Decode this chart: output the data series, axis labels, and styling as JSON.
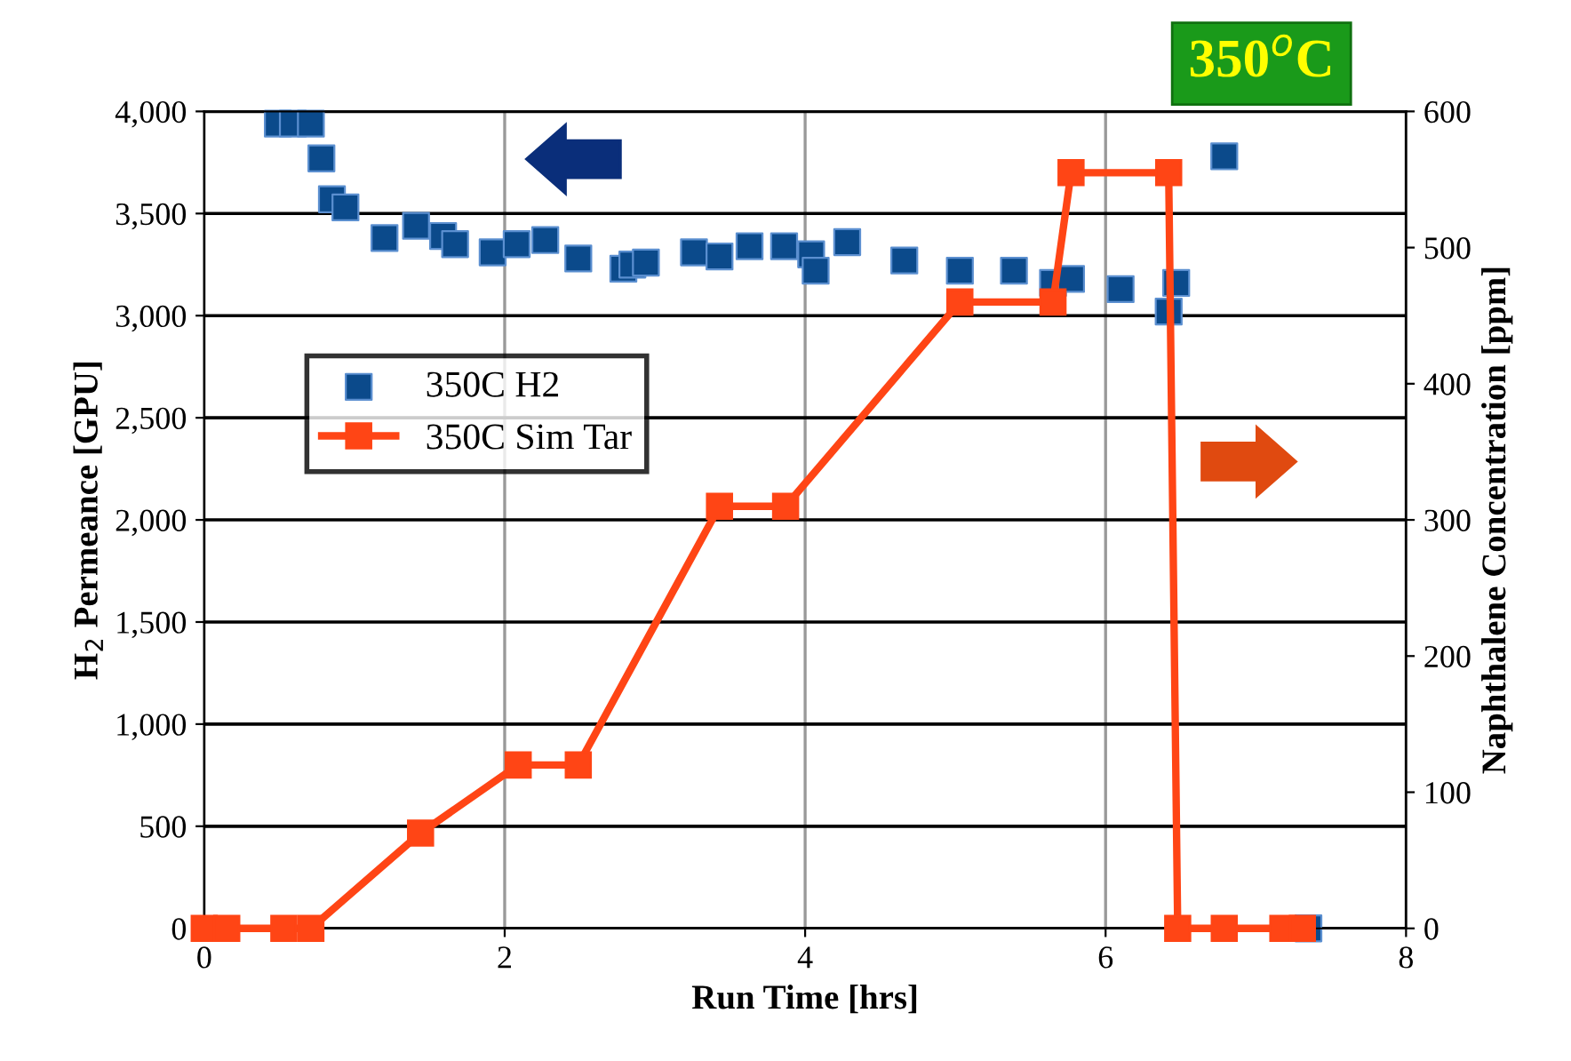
{
  "chart_data": {
    "type": "scatter",
    "xlabel": "Run Time [hrs]",
    "ylabel": "H$_{2}$ Permeance [GPU]",
    "y2label": "Naphthalene Concentration [ppm]",
    "annotations": [
      "350$^{o}$C"
    ],
    "xlim": [
      0,
      8
    ],
    "xticks": [
      0,
      2,
      4,
      6,
      8
    ],
    "ylim": [
      0,
      4000
    ],
    "yticks": [
      {
        "value": 0,
        "label": "0"
      },
      {
        "value": 500,
        "label": "500"
      },
      {
        "value": 1000,
        "label": "1,000"
      },
      {
        "value": 1500,
        "label": "1,500"
      },
      {
        "value": 2000,
        "label": "2,000"
      },
      {
        "value": 2500,
        "label": "2,500"
      },
      {
        "value": 3000,
        "label": "3,000"
      },
      {
        "value": 3500,
        "label": "3,500"
      },
      {
        "value": 4000,
        "label": "4,000"
      }
    ],
    "y2lim": [
      0,
      600
    ],
    "y2ticks": [
      0,
      100,
      200,
      300,
      400,
      500,
      600
    ],
    "grid": true,
    "legend": "left",
    "marker": "square",
    "series": [
      {
        "name": "350C H2",
        "color": "#0b4a8b",
        "x": [
          0.49,
          0.59,
          0.71,
          0.78,
          0.85,
          0.94,
          1.2,
          1.41,
          1.59,
          1.67,
          1.92,
          2.08,
          2.27,
          2.49,
          2.79,
          2.85,
          2.94,
          3.26,
          3.43,
          3.63,
          3.86,
          4.04,
          4.07,
          4.28,
          4.66,
          5.03,
          5.39,
          5.65,
          5.77,
          6.1,
          6.42,
          6.47,
          6.79,
          7.35
        ],
        "values": [
          3940,
          3940,
          3940,
          3770,
          3570,
          3530,
          3380,
          3440,
          3390,
          3350,
          3310,
          3350,
          3370,
          3280,
          3230,
          3250,
          3260,
          3310,
          3290,
          3340,
          3340,
          3300,
          3220,
          3360,
          3270,
          3220,
          3220,
          3160,
          3180,
          3130,
          3020,
          3160,
          3780,
          0
        ]
      },
      {
        "name": "350C Sim Tar",
        "type": "line",
        "axis": "y2",
        "color": "#ff4515",
        "x": [
          0,
          0.15,
          0.53,
          0.71,
          1.44,
          2.09,
          2.49,
          3.43,
          3.87,
          5.03,
          5.65,
          5.77,
          6.42,
          6.48,
          6.79,
          7.18,
          7.31
        ],
        "values": [
          0,
          0,
          0,
          0,
          70,
          120,
          120,
          310,
          310,
          460,
          460,
          555,
          555,
          0,
          0,
          0,
          0
        ]
      }
    ]
  }
}
